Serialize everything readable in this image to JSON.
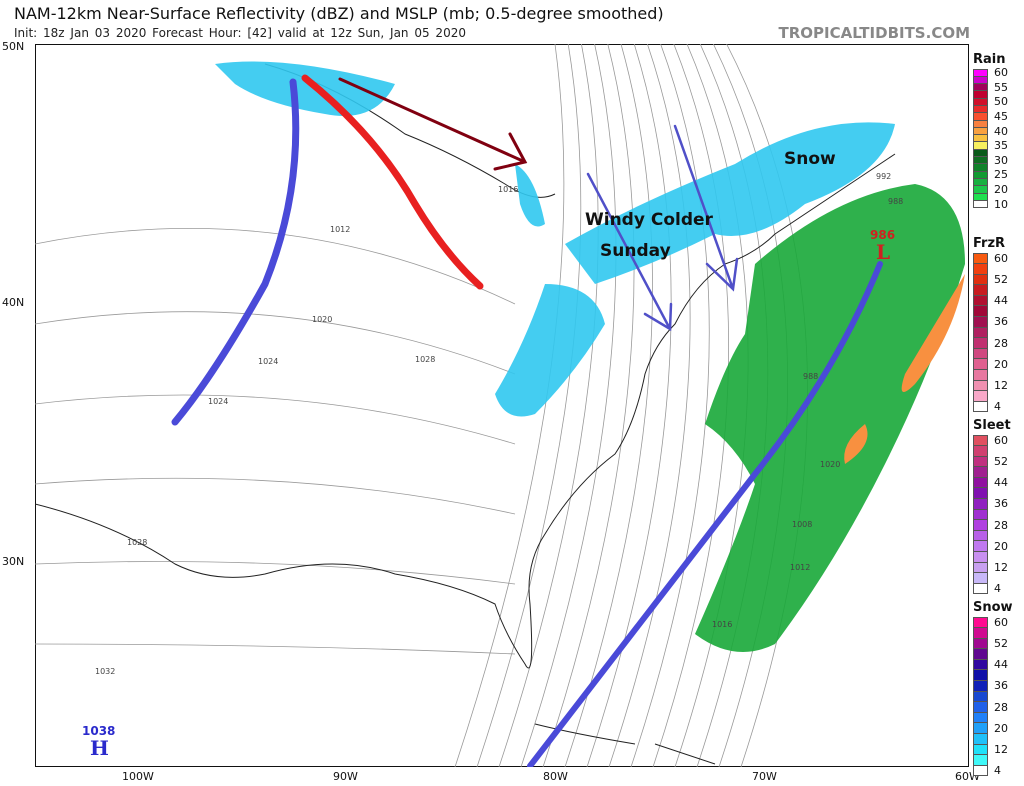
{
  "header": {
    "title": "NAM-12km Near-Surface Reflectivity (dBZ) and MSLP (mb; 0.5-degree smoothed)",
    "subtitle": "Init: 18z Jan 03 2020   Forecast Hour: [42]   valid at 12z Sun, Jan 05 2020",
    "brand": "TROPICALTIDBITS.COM"
  },
  "axes": {
    "lat": [
      "50N",
      "40N",
      "30N"
    ],
    "lon": [
      "100W",
      "90W",
      "80W",
      "70W",
      "60W"
    ]
  },
  "annotations": {
    "windy": "Windy Colder",
    "sunday": "Sunday",
    "snow": "Snow",
    "high_value": "1038",
    "high": "H",
    "low_value": "986",
    "low": "L"
  },
  "isobars": [
    "1016",
    "1012",
    "1020",
    "1024",
    "1024",
    "1028",
    "1028",
    "1032",
    "1008",
    "1012",
    "1016",
    "1020",
    "992",
    "988",
    "988"
  ],
  "legends": [
    {
      "name": "Rain",
      "items": [
        {
          "v": "60",
          "c": "#ff00ff"
        },
        {
          "v": "",
          "c": "#cc00cc"
        },
        {
          "v": "55",
          "c": "#a0005a"
        },
        {
          "v": "",
          "c": "#c00030"
        },
        {
          "v": "50",
          "c": "#d0102a"
        },
        {
          "v": "",
          "c": "#e82a2a"
        },
        {
          "v": "45",
          "c": "#f85030"
        },
        {
          "v": "",
          "c": "#f88040"
        },
        {
          "v": "40",
          "c": "#f8a040"
        },
        {
          "v": "",
          "c": "#f8c040"
        },
        {
          "v": "35",
          "c": "#f8f060"
        },
        {
          "v": "",
          "c": "#0a5a1a"
        },
        {
          "v": "30",
          "c": "#0f6e22"
        },
        {
          "v": "",
          "c": "#10822a"
        },
        {
          "v": "25",
          "c": "#129a32"
        },
        {
          "v": "",
          "c": "#18b040"
        },
        {
          "v": "20",
          "c": "#1cc84a"
        },
        {
          "v": "",
          "c": "#20e050"
        },
        {
          "v": "10",
          "c": "#ffffff"
        }
      ]
    },
    {
      "name": "FrzR",
      "items": [
        {
          "v": "60",
          "c": "#f85a10"
        },
        {
          "v": "",
          "c": "#f04010"
        },
        {
          "v": "52",
          "c": "#e03010"
        },
        {
          "v": "",
          "c": "#c81c20"
        },
        {
          "v": "44",
          "c": "#b01030"
        },
        {
          "v": "",
          "c": "#a00838"
        },
        {
          "v": "36",
          "c": "#a01050"
        },
        {
          "v": "",
          "c": "#b02060"
        },
        {
          "v": "28",
          "c": "#c03070"
        },
        {
          "v": "",
          "c": "#d04880"
        },
        {
          "v": "20",
          "c": "#e06090"
        },
        {
          "v": "",
          "c": "#e878a0"
        },
        {
          "v": "12",
          "c": "#f090b0"
        },
        {
          "v": "",
          "c": "#f8a8c8"
        },
        {
          "v": "4",
          "c": "#ffffff"
        }
      ]
    },
    {
      "name": "Sleet",
      "items": [
        {
          "v": "60",
          "c": "#e05060"
        },
        {
          "v": "",
          "c": "#d04070"
        },
        {
          "v": "52",
          "c": "#c03080"
        },
        {
          "v": "",
          "c": "#a02090"
        },
        {
          "v": "44",
          "c": "#9010a0"
        },
        {
          "v": "",
          "c": "#8010b0"
        },
        {
          "v": "36",
          "c": "#9020c0"
        },
        {
          "v": "",
          "c": "#a030d0"
        },
        {
          "v": "28",
          "c": "#b040e0"
        },
        {
          "v": "",
          "c": "#b860e8"
        },
        {
          "v": "20",
          "c": "#c078f0"
        },
        {
          "v": "",
          "c": "#c890f0"
        },
        {
          "v": "12",
          "c": "#c8a0f0"
        },
        {
          "v": "",
          "c": "#c8b8f8"
        },
        {
          "v": "4",
          "c": "#ffffff"
        }
      ]
    },
    {
      "name": "Snow",
      "items": [
        {
          "v": "60",
          "c": "#ff0a90"
        },
        {
          "v": "",
          "c": "#d00a90"
        },
        {
          "v": "52",
          "c": "#a00890"
        },
        {
          "v": "",
          "c": "#600890"
        },
        {
          "v": "44",
          "c": "#3008a0"
        },
        {
          "v": "",
          "c": "#1010a8"
        },
        {
          "v": "36",
          "c": "#1020b8"
        },
        {
          "v": "",
          "c": "#1848d0"
        },
        {
          "v": "28",
          "c": "#2060e8"
        },
        {
          "v": "",
          "c": "#2080f8"
        },
        {
          "v": "20",
          "c": "#20a0f8"
        },
        {
          "v": "",
          "c": "#20c0f8"
        },
        {
          "v": "12",
          "c": "#20e0f8"
        },
        {
          "v": "",
          "c": "#40f8f8"
        },
        {
          "v": "4",
          "c": "#ffffff"
        }
      ]
    }
  ]
}
